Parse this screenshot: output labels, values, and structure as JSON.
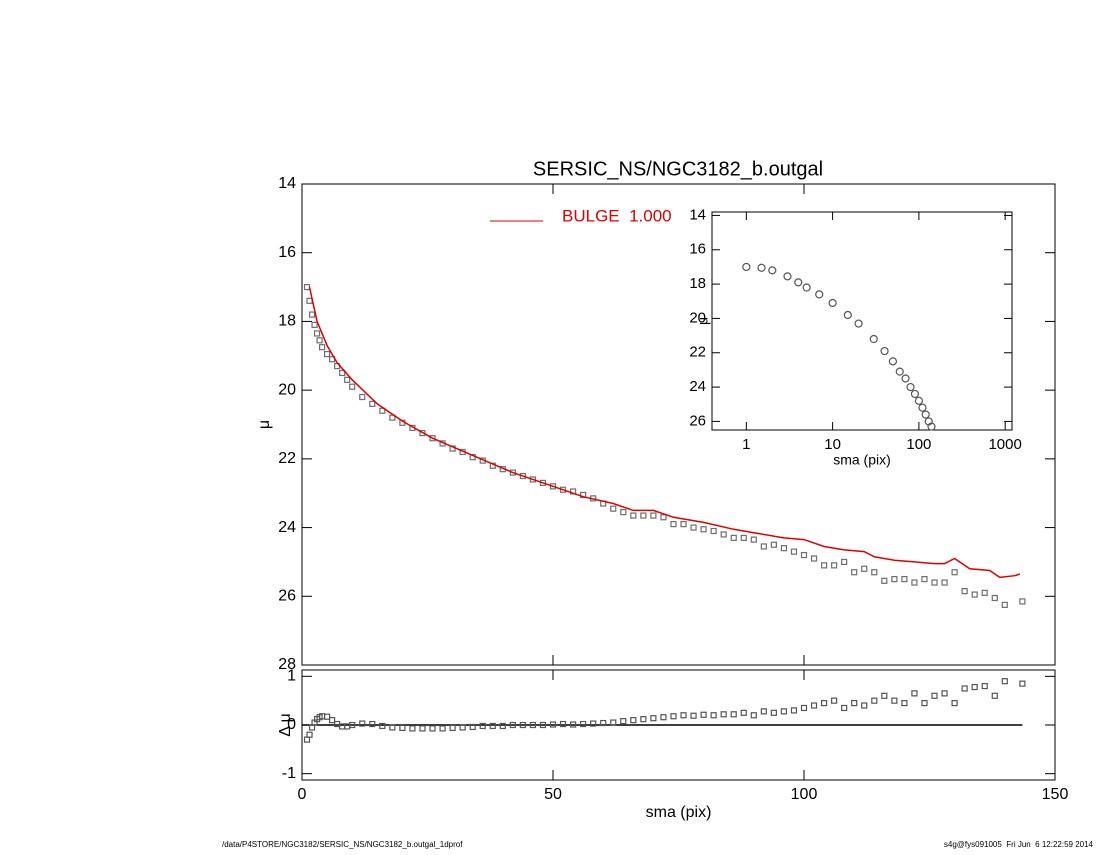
{
  "footer": {
    "left": "/data/P4STORE/NGC3182/SERSIC_NS/NGC3182_b.outgal_1dprof",
    "right": "s4g@fys091005  Fri Jun  6 12:22:59 2014"
  },
  "chart_data": [
    {
      "type": "scatter",
      "title": "SERSIC_NS/NGC3182_b.outgal",
      "y_label": "μ",
      "xlim": [
        0,
        150
      ],
      "xticks": [
        0,
        50,
        100,
        150
      ],
      "ylim": [
        28,
        14
      ],
      "yticks": [
        14,
        16,
        18,
        20,
        22,
        24,
        26,
        28
      ],
      "series": [
        {
          "color": "#6e6e6e",
          "marker": "square",
          "x": [
            1,
            1.5,
            2,
            2.5,
            3,
            3.5,
            4,
            5,
            6,
            7,
            8,
            9,
            10,
            12,
            14,
            16,
            18,
            20,
            22,
            24,
            26,
            28,
            30,
            32,
            34,
            36,
            38,
            40,
            42,
            44,
            46,
            48,
            50,
            52,
            54,
            56,
            58,
            60,
            62,
            64,
            66,
            68,
            70,
            72,
            74,
            76,
            78,
            80,
            82,
            84,
            86,
            88,
            90,
            92,
            94,
            96,
            98,
            100,
            102,
            104,
            106,
            108,
            110,
            112,
            114,
            116,
            118,
            120,
            122,
            124,
            126,
            128,
            130,
            132,
            134,
            136,
            138,
            140,
            143.5
          ],
          "values": [
            17.0,
            17.4,
            17.8,
            18.1,
            18.35,
            18.55,
            18.75,
            18.95,
            19.1,
            19.3,
            19.5,
            19.7,
            19.9,
            20.2,
            20.4,
            20.6,
            20.8,
            20.95,
            21.1,
            21.25,
            21.4,
            21.55,
            21.7,
            21.8,
            21.95,
            22.05,
            22.2,
            22.3,
            22.4,
            22.5,
            22.6,
            22.7,
            22.8,
            22.9,
            22.95,
            23.05,
            23.15,
            23.3,
            23.45,
            23.55,
            23.65,
            23.65,
            23.65,
            23.7,
            23.9,
            23.9,
            24.0,
            24.05,
            24.1,
            24.2,
            24.3,
            24.3,
            24.35,
            24.55,
            24.5,
            24.6,
            24.7,
            24.8,
            24.9,
            25.1,
            25.1,
            25.0,
            25.3,
            25.2,
            25.3,
            25.55,
            25.5,
            25.5,
            25.6,
            25.5,
            25.6,
            25.6,
            25.3,
            25.85,
            25.95,
            25.9,
            26.05,
            26.25,
            26.15
          ]
        },
        {
          "name": "BULGE  1.000",
          "color": "#e00000",
          "type": "line",
          "x": [
            1.5,
            3,
            5,
            7,
            10,
            15,
            20,
            26,
            34,
            42,
            50,
            56,
            62,
            66,
            70,
            74,
            80,
            86,
            90,
            96,
            100,
            104,
            108,
            112,
            114,
            118,
            122,
            126,
            128,
            130,
            133,
            137,
            139,
            142,
            143
          ],
          "values": [
            17.0,
            18.0,
            18.7,
            19.2,
            19.7,
            20.4,
            20.9,
            21.4,
            21.9,
            22.4,
            22.8,
            23.1,
            23.3,
            23.5,
            23.5,
            23.7,
            23.85,
            24.05,
            24.15,
            24.3,
            24.35,
            24.55,
            24.65,
            24.7,
            24.85,
            24.95,
            25.0,
            25.05,
            25.05,
            24.9,
            25.2,
            25.25,
            25.45,
            25.4,
            25.35
          ]
        }
      ]
    },
    {
      "type": "scatter",
      "x_label": "sma (pix)",
      "y_label": "μ",
      "xscale": "log",
      "xlim": [
        0.4,
        1200
      ],
      "xticks": [
        1,
        10,
        100,
        1000
      ],
      "ylim": [
        26.5,
        13.8
      ],
      "yticks": [
        14,
        16,
        18,
        20,
        22,
        24,
        26
      ],
      "series": [
        {
          "color": "#555555",
          "marker": "circle",
          "x": [
            1,
            1.5,
            2,
            3,
            4,
            5,
            7,
            10,
            15,
            20,
            30,
            40,
            50,
            60,
            70,
            80,
            90,
            100,
            110,
            120,
            130,
            140
          ],
          "values": [
            17.0,
            17.05,
            17.2,
            17.55,
            17.9,
            18.2,
            18.6,
            19.1,
            19.8,
            20.3,
            21.2,
            21.9,
            22.5,
            23.1,
            23.5,
            24.0,
            24.4,
            24.8,
            25.2,
            25.6,
            26.0,
            26.3
          ]
        }
      ]
    },
    {
      "type": "scatter",
      "x_label": "sma (pix)",
      "y_label": "Δ μ",
      "xlim": [
        0,
        150
      ],
      "xticks": [
        0,
        50,
        100,
        150
      ],
      "ylim": [
        -1.13,
        1.13
      ],
      "yticks": [
        -1,
        0,
        1
      ],
      "series": [
        {
          "color": "#000000",
          "type": "line",
          "x": [
            0,
            143.5
          ],
          "values": [
            0,
            0
          ]
        },
        {
          "color": "#555555",
          "marker": "square",
          "x": [
            1,
            1.5,
            2,
            2.5,
            3,
            3.5,
            4,
            5,
            6,
            7,
            8,
            9,
            10,
            12,
            14,
            16,
            18,
            20,
            22,
            24,
            26,
            28,
            30,
            32,
            34,
            36,
            38,
            40,
            42,
            44,
            46,
            48,
            50,
            52,
            54,
            56,
            58,
            60,
            62,
            64,
            66,
            68,
            70,
            72,
            74,
            76,
            78,
            80,
            82,
            84,
            86,
            88,
            90,
            92,
            94,
            96,
            98,
            100,
            102,
            104,
            106,
            108,
            110,
            112,
            114,
            116,
            118,
            120,
            122,
            124,
            126,
            128,
            130,
            132,
            134,
            136,
            138,
            140,
            143.5
          ],
          "values": [
            -0.3,
            -0.2,
            -0.05,
            0.05,
            0.12,
            0.16,
            0.18,
            0.17,
            0.1,
            0.02,
            -0.03,
            -0.03,
            0.0,
            0.03,
            0.02,
            -0.02,
            -0.05,
            -0.06,
            -0.07,
            -0.07,
            -0.07,
            -0.07,
            -0.06,
            -0.05,
            -0.04,
            -0.02,
            -0.02,
            -0.02,
            0,
            0,
            0,
            0,
            0.01,
            0.02,
            0.01,
            0.02,
            0.03,
            0.04,
            0.05,
            0.08,
            0.1,
            0.12,
            0.14,
            0.16,
            0.18,
            0.2,
            0.19,
            0.21,
            0.2,
            0.22,
            0.22,
            0.25,
            0.2,
            0.28,
            0.25,
            0.28,
            0.3,
            0.35,
            0.4,
            0.45,
            0.5,
            0.35,
            0.45,
            0.4,
            0.5,
            0.6,
            0.5,
            0.45,
            0.65,
            0.45,
            0.6,
            0.65,
            0.45,
            0.75,
            0.78,
            0.8,
            0.6,
            0.9,
            0.85
          ]
        }
      ]
    }
  ]
}
